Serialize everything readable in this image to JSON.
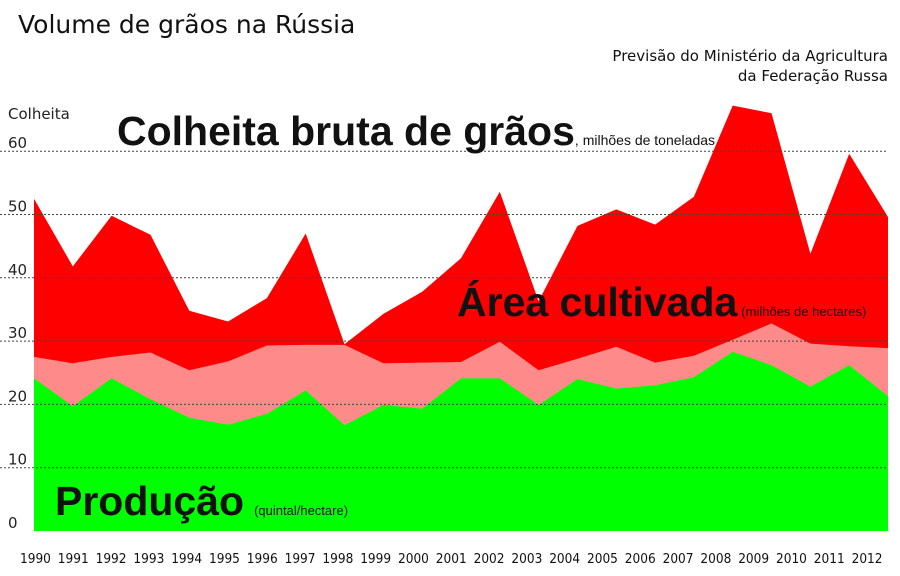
{
  "header": {
    "title": "Volume de grãos na Rússia",
    "source_line1": "Previsão do Ministério da Agricultura",
    "source_line2": "da Federação Russa"
  },
  "chart_data": {
    "type": "area",
    "ylabel": "Colheita",
    "ylim": [
      0,
      60
    ],
    "yticks": [
      0,
      10,
      20,
      30,
      40,
      50,
      60
    ],
    "grid": true,
    "x": [
      "1990",
      "1991",
      "1992",
      "1993",
      "1994",
      "1995",
      "1996",
      "1997",
      "1998",
      "1999",
      "2000",
      "2001",
      "2002",
      "2003",
      "2004",
      "2005",
      "2006",
      "2007",
      "2008",
      "2009",
      "2010",
      "2011",
      "2012"
    ],
    "series": [
      {
        "name": "Colheita bruta de grãos",
        "unit": "milhões de toneladas",
        "color": "#ff0000",
        "values": [
          52.5,
          41.8,
          49.8,
          46.8,
          34.8,
          33.1,
          36.8,
          47.0,
          29.5,
          34.3,
          37.8,
          43.1,
          53.6,
          36.3,
          48.2,
          50.8,
          48.4,
          52.8,
          67.2,
          66.0,
          43.8,
          59.6,
          49.6
        ]
      },
      {
        "name": "Área cultivada",
        "unit": "milhões de hectares",
        "color": "#ff8a8a",
        "values": [
          27.5,
          26.5,
          27.5,
          28.2,
          25.4,
          26.8,
          29.3,
          29.4,
          29.4,
          26.5,
          26.6,
          26.7,
          29.9,
          25.4,
          27.2,
          29.1,
          26.6,
          27.7,
          30.2,
          32.8,
          29.6,
          29.2,
          28.9
        ]
      },
      {
        "name": "Produção",
        "unit": "quintal/hectare",
        "color": "#00ff00",
        "values": [
          24.1,
          19.7,
          24.1,
          20.8,
          17.9,
          16.8,
          18.5,
          22.2,
          16.7,
          19.9,
          19.3,
          24.1,
          24.1,
          19.9,
          24.0,
          22.5,
          23.0,
          24.3,
          28.3,
          26.2,
          22.8,
          26.2,
          21.3
        ]
      }
    ],
    "annotations": {
      "harvest_label": "Colheita bruta de grãos",
      "harvest_unit": ", milhões de toneladas",
      "area_label": "Área cultivada",
      "area_unit": "(milhões de hectares)",
      "production_label": "Produção",
      "production_unit": "(quintal/hectare)"
    }
  }
}
